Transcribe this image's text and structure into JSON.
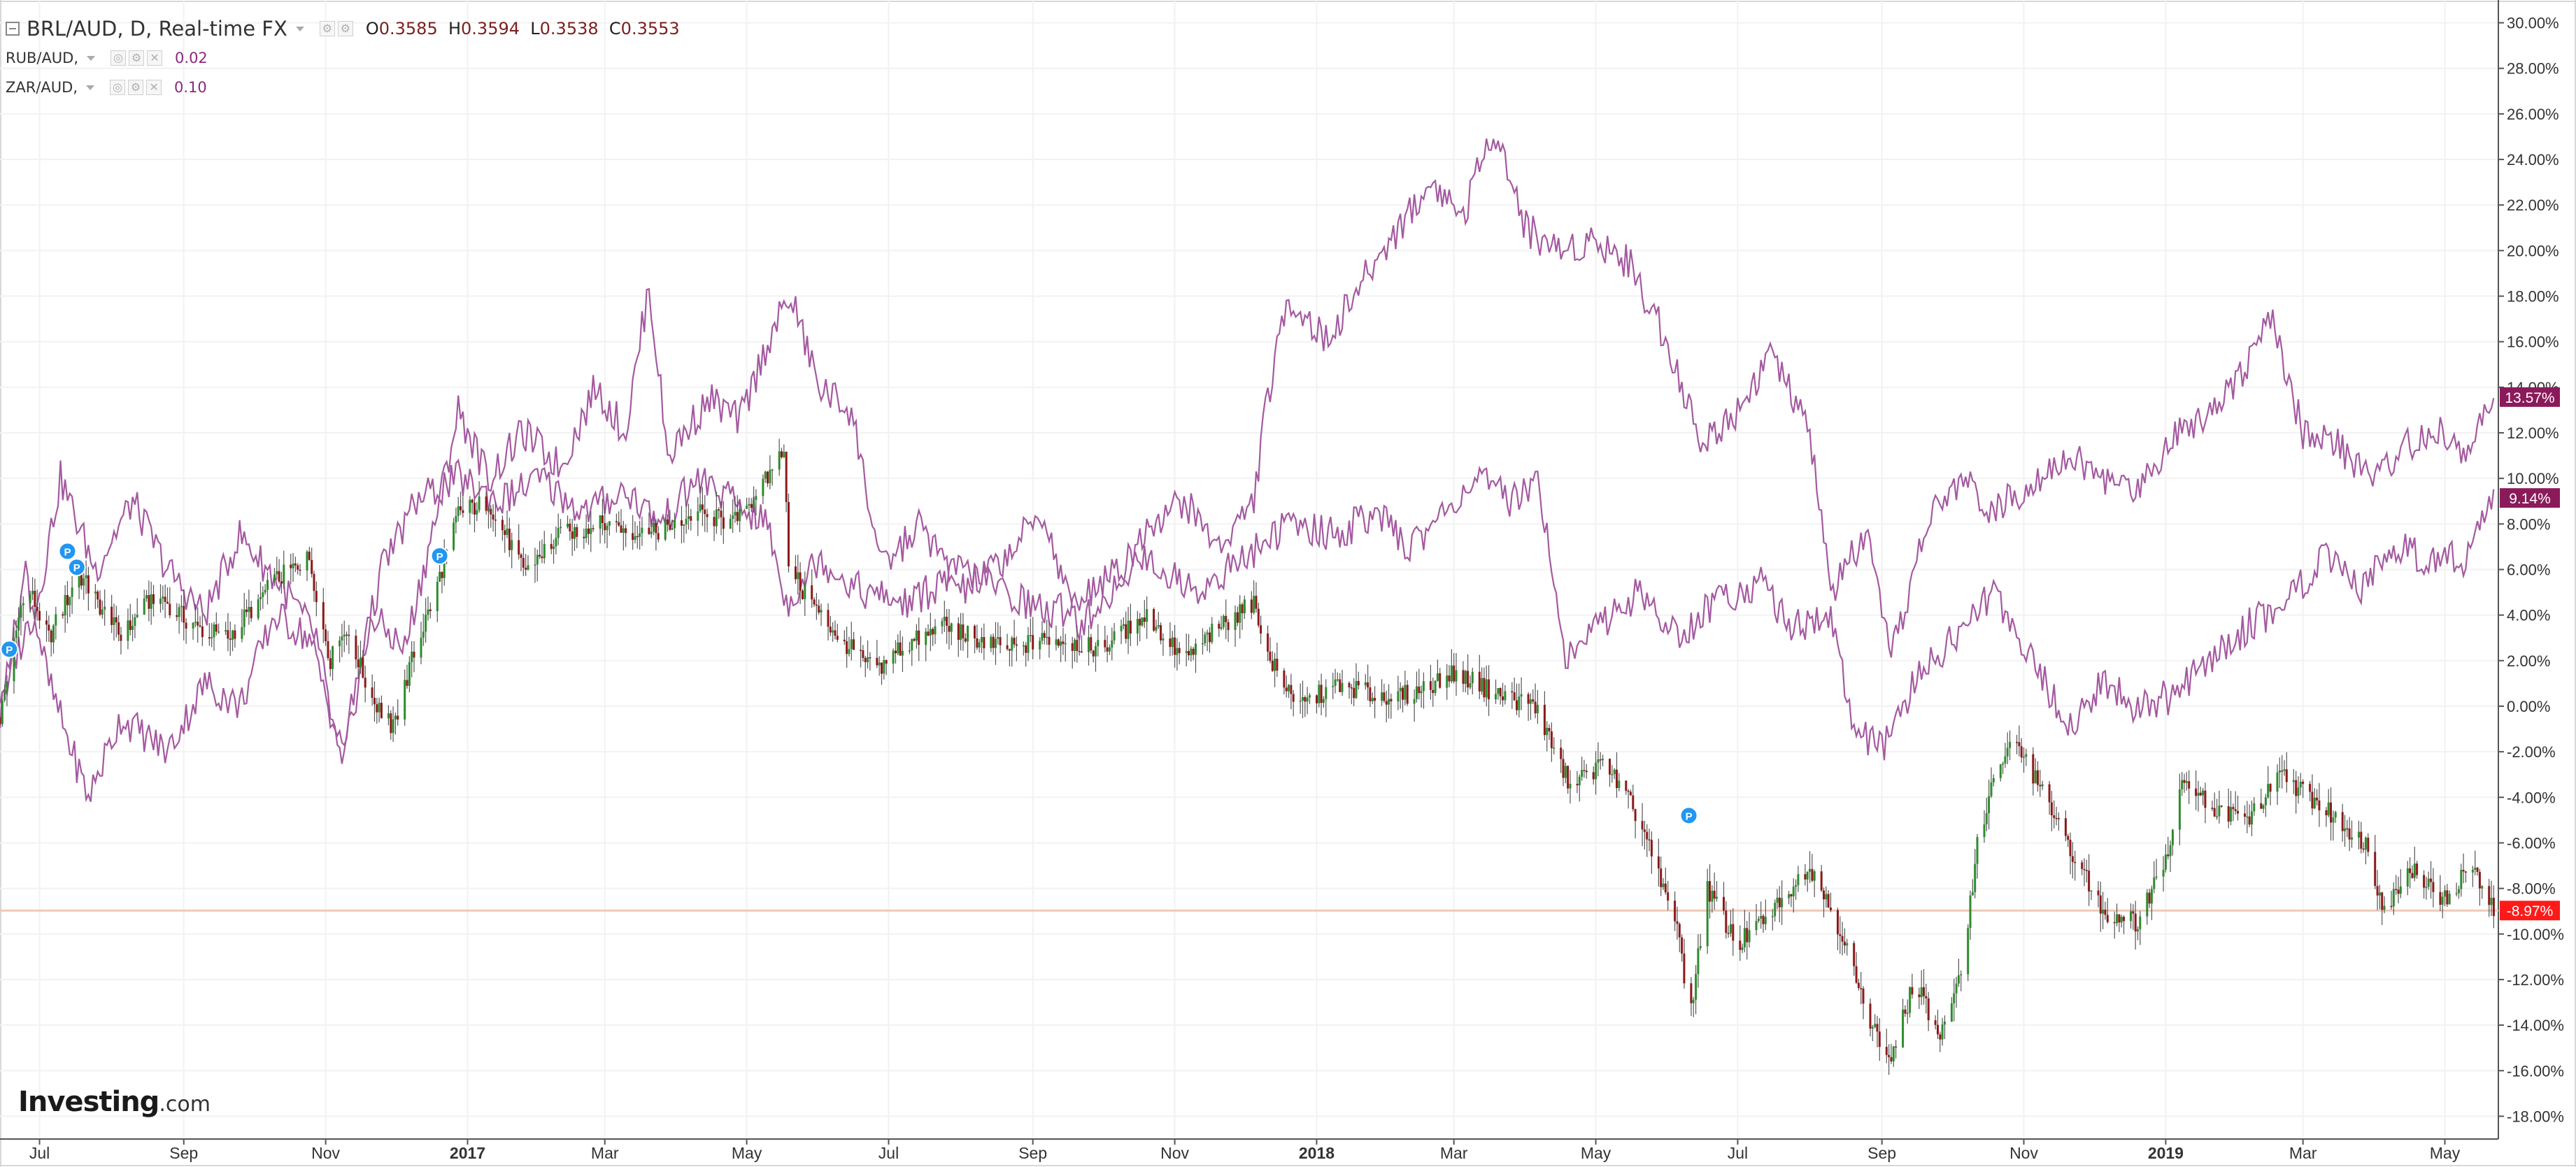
{
  "legend": {
    "main": {
      "symbol": "BRL/AUD, D, Real-time FX",
      "o_label": "O",
      "o": "0.3585",
      "h_label": "H",
      "h": "0.3594",
      "l_label": "L",
      "l": "0.3538",
      "c_label": "C",
      "c": "0.3553"
    },
    "overlays": [
      {
        "symbol": "RUB/AUD,",
        "value": "0.02"
      },
      {
        "symbol": "ZAR/AUD,",
        "value": "0.10"
      }
    ]
  },
  "logo": {
    "brand": "Investing",
    "suffix": ".com"
  },
  "colors": {
    "up": "#2e8b2e",
    "down": "#8b1a1a",
    "overlay": "#a45aa0",
    "baseline": "#f0c8b8",
    "grid": "#f2f2f2"
  },
  "chart_data": {
    "type": "candlestick",
    "y_unit": "percent change",
    "ylim": [
      -19,
      31
    ],
    "y_ticks": [
      30,
      28,
      26,
      24,
      22,
      20,
      18,
      16,
      14,
      12,
      10,
      8,
      6,
      4,
      2,
      0,
      -2,
      -4,
      -6,
      -8,
      -10,
      -12,
      -14,
      -16,
      -18
    ],
    "y_tick_labels": [
      "30.00%",
      "28.00%",
      "26.00%",
      "24.00%",
      "22.00%",
      "20.00%",
      "18.00%",
      "16.00%",
      "14.00%",
      "12.00%",
      "10.00%",
      "8.00%",
      "6.00%",
      "4.00%",
      "2.00%",
      "0.00%",
      "-2.00%",
      "-4.00%",
      "-6.00%",
      "-8.00%",
      "-10.00%",
      "-12.00%",
      "-14.00%",
      "-16.00%",
      "-18.00%"
    ],
    "x_range": [
      "2016-06-14",
      "2019-05-24"
    ],
    "x_ticks": [
      {
        "date": "2016-07-01",
        "label": "Jul",
        "bold": false
      },
      {
        "date": "2016-09-01",
        "label": "Sep",
        "bold": false
      },
      {
        "date": "2016-11-01",
        "label": "Nov",
        "bold": false
      },
      {
        "date": "2017-01-01",
        "label": "2017",
        "bold": true
      },
      {
        "date": "2017-03-01",
        "label": "Mar",
        "bold": false
      },
      {
        "date": "2017-05-01",
        "label": "May",
        "bold": false
      },
      {
        "date": "2017-07-01",
        "label": "Jul",
        "bold": false
      },
      {
        "date": "2017-09-01",
        "label": "Sep",
        "bold": false
      },
      {
        "date": "2017-11-01",
        "label": "Nov",
        "bold": false
      },
      {
        "date": "2018-01-01",
        "label": "2018",
        "bold": true
      },
      {
        "date": "2018-03-01",
        "label": "Mar",
        "bold": false
      },
      {
        "date": "2018-05-01",
        "label": "May",
        "bold": false
      },
      {
        "date": "2018-07-01",
        "label": "Jul",
        "bold": false
      },
      {
        "date": "2018-09-01",
        "label": "Sep",
        "bold": false
      },
      {
        "date": "2018-11-01",
        "label": "Nov",
        "bold": false
      },
      {
        "date": "2019-01-01",
        "label": "2019",
        "bold": true
      },
      {
        "date": "2019-03-01",
        "label": "Mar",
        "bold": false
      },
      {
        "date": "2019-05-01",
        "label": "May",
        "bold": false
      }
    ],
    "series": [
      {
        "name": "BRL/AUD",
        "style": "candles",
        "last_label": "-8.97%",
        "last": -8.97,
        "points": [
          [
            "2016-06-14",
            -0.5
          ],
          [
            "2016-06-25",
            5.5
          ],
          [
            "2016-07-05",
            3.0
          ],
          [
            "2016-07-18",
            5.8
          ],
          [
            "2016-08-05",
            3.0
          ],
          [
            "2016-08-20",
            5.0
          ],
          [
            "2016-09-05",
            3.5
          ],
          [
            "2016-09-20",
            3.0
          ],
          [
            "2016-10-10",
            5.5
          ],
          [
            "2016-10-25",
            6.5
          ],
          [
            "2016-11-03",
            2.0
          ],
          [
            "2016-11-10",
            3.5
          ],
          [
            "2016-11-20",
            0.5
          ],
          [
            "2016-11-30",
            -1.0
          ],
          [
            "2016-12-08",
            2.0
          ],
          [
            "2016-12-18",
            5.0
          ],
          [
            "2016-12-28",
            8.5
          ],
          [
            "2017-01-10",
            9.0
          ],
          [
            "2017-01-25",
            6.0
          ],
          [
            "2017-02-10",
            7.5
          ],
          [
            "2017-03-01",
            8.0
          ],
          [
            "2017-03-20",
            7.5
          ],
          [
            "2017-04-10",
            8.5
          ],
          [
            "2017-04-25",
            8.0
          ],
          [
            "2017-05-10",
            10.0
          ],
          [
            "2017-05-17",
            11.5
          ],
          [
            "2017-05-19",
            6.5
          ],
          [
            "2017-05-25",
            5.0
          ],
          [
            "2017-06-10",
            3.0
          ],
          [
            "2017-06-25",
            1.5
          ],
          [
            "2017-07-05",
            2.5
          ],
          [
            "2017-07-25",
            3.5
          ],
          [
            "2017-08-20",
            2.5
          ],
          [
            "2017-09-10",
            3.0
          ],
          [
            "2017-10-01",
            2.5
          ],
          [
            "2017-10-20",
            4.0
          ],
          [
            "2017-11-05",
            2.0
          ],
          [
            "2017-11-20",
            3.5
          ],
          [
            "2017-12-05",
            4.5
          ],
          [
            "2017-12-12",
            2.0
          ],
          [
            "2017-12-25",
            0.0
          ],
          [
            "2018-01-10",
            1.0
          ],
          [
            "2018-01-25",
            0.5
          ],
          [
            "2018-02-10",
            0.5
          ],
          [
            "2018-03-01",
            1.5
          ],
          [
            "2018-03-20",
            0.5
          ],
          [
            "2018-04-05",
            0.0
          ],
          [
            "2018-04-20",
            -3.5
          ],
          [
            "2018-05-05",
            -2.5
          ],
          [
            "2018-05-20",
            -5.0
          ],
          [
            "2018-05-28",
            -7.5
          ],
          [
            "2018-06-05",
            -9.5
          ],
          [
            "2018-06-10",
            -14.0
          ],
          [
            "2018-06-18",
            -8.0
          ],
          [
            "2018-07-01",
            -10.5
          ],
          [
            "2018-07-15",
            -9.0
          ],
          [
            "2018-08-01",
            -7.0
          ],
          [
            "2018-08-15",
            -10.0
          ],
          [
            "2018-08-25",
            -13.5
          ],
          [
            "2018-09-05",
            -15.5
          ],
          [
            "2018-09-15",
            -12.0
          ],
          [
            "2018-09-25",
            -14.5
          ],
          [
            "2018-10-05",
            -12.0
          ],
          [
            "2018-10-12",
            -6.0
          ],
          [
            "2018-10-20",
            -3.0
          ],
          [
            "2018-10-28",
            -1.5
          ],
          [
            "2018-11-05",
            -3.0
          ],
          [
            "2018-11-20",
            -6.0
          ],
          [
            "2018-12-05",
            -9.0
          ],
          [
            "2018-12-20",
            -9.5
          ],
          [
            "2019-01-03",
            -6.0
          ],
          [
            "2019-01-08",
            -3.0
          ],
          [
            "2019-01-20",
            -4.5
          ],
          [
            "2019-02-05",
            -5.0
          ],
          [
            "2019-02-20",
            -3.0
          ],
          [
            "2019-03-10",
            -4.5
          ],
          [
            "2019-03-28",
            -6.0
          ],
          [
            "2019-04-05",
            -9.0
          ],
          [
            "2019-04-15",
            -7.0
          ],
          [
            "2019-05-01",
            -8.5
          ],
          [
            "2019-05-12",
            -7.0
          ],
          [
            "2019-05-22",
            -8.97
          ]
        ]
      },
      {
        "name": "RUB/AUD",
        "style": "line",
        "last_label": "13.57%",
        "last": 13.57,
        "points": [
          [
            "2016-06-14",
            0.5
          ],
          [
            "2016-06-30",
            4.5
          ],
          [
            "2016-07-10",
            10.0
          ],
          [
            "2016-07-25",
            6.0
          ],
          [
            "2016-08-10",
            9.0
          ],
          [
            "2016-08-25",
            6.0
          ],
          [
            "2016-09-10",
            4.0
          ],
          [
            "2016-09-25",
            7.5
          ],
          [
            "2016-10-15",
            5.0
          ],
          [
            "2016-10-28",
            3.0
          ],
          [
            "2016-11-08",
            -3.0
          ],
          [
            "2016-11-20",
            4.0
          ],
          [
            "2016-12-05",
            2.5
          ],
          [
            "2016-12-20",
            9.0
          ],
          [
            "2016-12-28",
            13.0
          ],
          [
            "2017-01-10",
            10.0
          ],
          [
            "2017-01-25",
            12.0
          ],
          [
            "2017-02-10",
            10.5
          ],
          [
            "2017-02-25",
            14.0
          ],
          [
            "2017-03-10",
            12.0
          ],
          [
            "2017-03-20",
            18.5
          ],
          [
            "2017-03-28",
            11.0
          ],
          [
            "2017-04-15",
            13.5
          ],
          [
            "2017-04-28",
            12.5
          ],
          [
            "2017-05-10",
            16.0
          ],
          [
            "2017-05-20",
            18.0
          ],
          [
            "2017-06-01",
            14.0
          ],
          [
            "2017-06-15",
            13.0
          ],
          [
            "2017-06-28",
            6.0
          ],
          [
            "2017-07-15",
            8.0
          ],
          [
            "2017-08-01",
            5.0
          ],
          [
            "2017-08-20",
            6.5
          ],
          [
            "2017-09-05",
            8.5
          ],
          [
            "2017-09-20",
            3.5
          ],
          [
            "2017-10-05",
            5.0
          ],
          [
            "2017-10-20",
            8.0
          ],
          [
            "2017-11-05",
            9.0
          ],
          [
            "2017-11-20",
            7.0
          ],
          [
            "2017-12-05",
            9.0
          ],
          [
            "2017-12-10",
            13.0
          ],
          [
            "2017-12-20",
            18.0
          ],
          [
            "2018-01-05",
            16.0
          ],
          [
            "2018-01-20",
            18.5
          ],
          [
            "2018-02-05",
            21.0
          ],
          [
            "2018-02-20",
            23.0
          ],
          [
            "2018-03-05",
            21.5
          ],
          [
            "2018-03-18",
            25.5
          ],
          [
            "2018-04-01",
            21.0
          ],
          [
            "2018-04-15",
            20.0
          ],
          [
            "2018-05-01",
            20.5
          ],
          [
            "2018-05-15",
            19.5
          ],
          [
            "2018-06-01",
            16.0
          ],
          [
            "2018-06-15",
            11.5
          ],
          [
            "2018-07-01",
            13.0
          ],
          [
            "2018-07-15",
            15.5
          ],
          [
            "2018-08-01",
            12.0
          ],
          [
            "2018-08-10",
            5.0
          ],
          [
            "2018-08-25",
            7.5
          ],
          [
            "2018-09-05",
            2.0
          ],
          [
            "2018-09-20",
            8.0
          ],
          [
            "2018-10-05",
            10.0
          ],
          [
            "2018-10-20",
            8.5
          ],
          [
            "2018-11-05",
            10.0
          ],
          [
            "2018-11-20",
            11.0
          ],
          [
            "2018-12-05",
            10.0
          ],
          [
            "2018-12-20",
            9.5
          ],
          [
            "2019-01-05",
            12.0
          ],
          [
            "2019-01-20",
            13.0
          ],
          [
            "2019-02-05",
            15.0
          ],
          [
            "2019-02-15",
            17.0
          ],
          [
            "2019-03-01",
            12.0
          ],
          [
            "2019-03-15",
            11.5
          ],
          [
            "2019-04-01",
            10.0
          ],
          [
            "2019-04-15",
            11.5
          ],
          [
            "2019-05-01",
            12.0
          ],
          [
            "2019-05-10",
            11.0
          ],
          [
            "2019-05-22",
            13.57
          ]
        ]
      },
      {
        "name": "ZAR/AUD",
        "style": "line",
        "last_label": "9.14%",
        "last": 9.14,
        "points": [
          [
            "2016-06-14",
            -0.5
          ],
          [
            "2016-06-25",
            6.0
          ],
          [
            "2016-07-05",
            1.0
          ],
          [
            "2016-07-15",
            -2.0
          ],
          [
            "2016-07-22",
            -4.0
          ],
          [
            "2016-08-05",
            -0.5
          ],
          [
            "2016-08-25",
            -2.0
          ],
          [
            "2016-09-10",
            1.0
          ],
          [
            "2016-09-25",
            0.0
          ],
          [
            "2016-10-10",
            4.0
          ],
          [
            "2016-10-25",
            3.0
          ],
          [
            "2016-11-08",
            -2.0
          ],
          [
            "2016-11-25",
            6.0
          ],
          [
            "2016-12-10",
            9.0
          ],
          [
            "2016-12-28",
            10.0
          ],
          [
            "2017-01-15",
            9.0
          ],
          [
            "2017-02-01",
            10.0
          ],
          [
            "2017-02-20",
            8.5
          ],
          [
            "2017-03-10",
            9.5
          ],
          [
            "2017-03-25",
            8.0
          ],
          [
            "2017-04-10",
            10.0
          ],
          [
            "2017-04-25",
            9.0
          ],
          [
            "2017-05-10",
            8.0
          ],
          [
            "2017-05-18",
            4.5
          ],
          [
            "2017-06-01",
            6.5
          ],
          [
            "2017-06-20",
            5.0
          ],
          [
            "2017-07-10",
            4.5
          ],
          [
            "2017-08-01",
            6.0
          ],
          [
            "2017-08-20",
            5.0
          ],
          [
            "2017-09-10",
            4.0
          ],
          [
            "2017-10-01",
            5.5
          ],
          [
            "2017-10-20",
            6.5
          ],
          [
            "2017-11-10",
            5.0
          ],
          [
            "2017-12-01",
            6.5
          ],
          [
            "2017-12-20",
            8.0
          ],
          [
            "2018-01-10",
            7.5
          ],
          [
            "2018-01-25",
            8.5
          ],
          [
            "2018-02-10",
            7.0
          ],
          [
            "2018-02-25",
            8.5
          ],
          [
            "2018-03-10",
            10.0
          ],
          [
            "2018-03-25",
            9.0
          ],
          [
            "2018-04-05",
            10.0
          ],
          [
            "2018-04-10",
            8.0
          ],
          [
            "2018-04-18",
            2.0
          ],
          [
            "2018-05-01",
            3.5
          ],
          [
            "2018-05-20",
            5.0
          ],
          [
            "2018-06-05",
            3.0
          ],
          [
            "2018-06-20",
            4.5
          ],
          [
            "2018-07-10",
            5.5
          ],
          [
            "2018-07-25",
            3.5
          ],
          [
            "2018-08-10",
            4.0
          ],
          [
            "2018-08-20",
            -1.0
          ],
          [
            "2018-09-01",
            -2.0
          ],
          [
            "2018-09-15",
            1.0
          ],
          [
            "2018-10-01",
            3.0
          ],
          [
            "2018-10-20",
            5.0
          ],
          [
            "2018-11-05",
            2.0
          ],
          [
            "2018-11-20",
            -1.0
          ],
          [
            "2018-12-05",
            1.0
          ],
          [
            "2018-12-20",
            0.0
          ],
          [
            "2019-01-05",
            0.5
          ],
          [
            "2019-01-20",
            2.0
          ],
          [
            "2019-02-05",
            3.5
          ],
          [
            "2019-02-20",
            4.5
          ],
          [
            "2019-03-10",
            6.5
          ],
          [
            "2019-03-25",
            5.0
          ],
          [
            "2019-04-10",
            7.0
          ],
          [
            "2019-04-25",
            6.5
          ],
          [
            "2019-05-10",
            6.5
          ],
          [
            "2019-05-22",
            9.14
          ]
        ]
      }
    ],
    "markers": [
      {
        "label": "P",
        "date": "2016-06-18",
        "y": 2.5
      },
      {
        "label": "P",
        "date": "2016-07-13",
        "y": 6.8
      },
      {
        "label": "P",
        "date": "2016-07-17",
        "y": 6.1
      },
      {
        "label": "P",
        "date": "2016-12-20",
        "y": 6.6
      },
      {
        "label": "P",
        "date": "2018-06-10",
        "y": -4.8
      }
    ]
  }
}
